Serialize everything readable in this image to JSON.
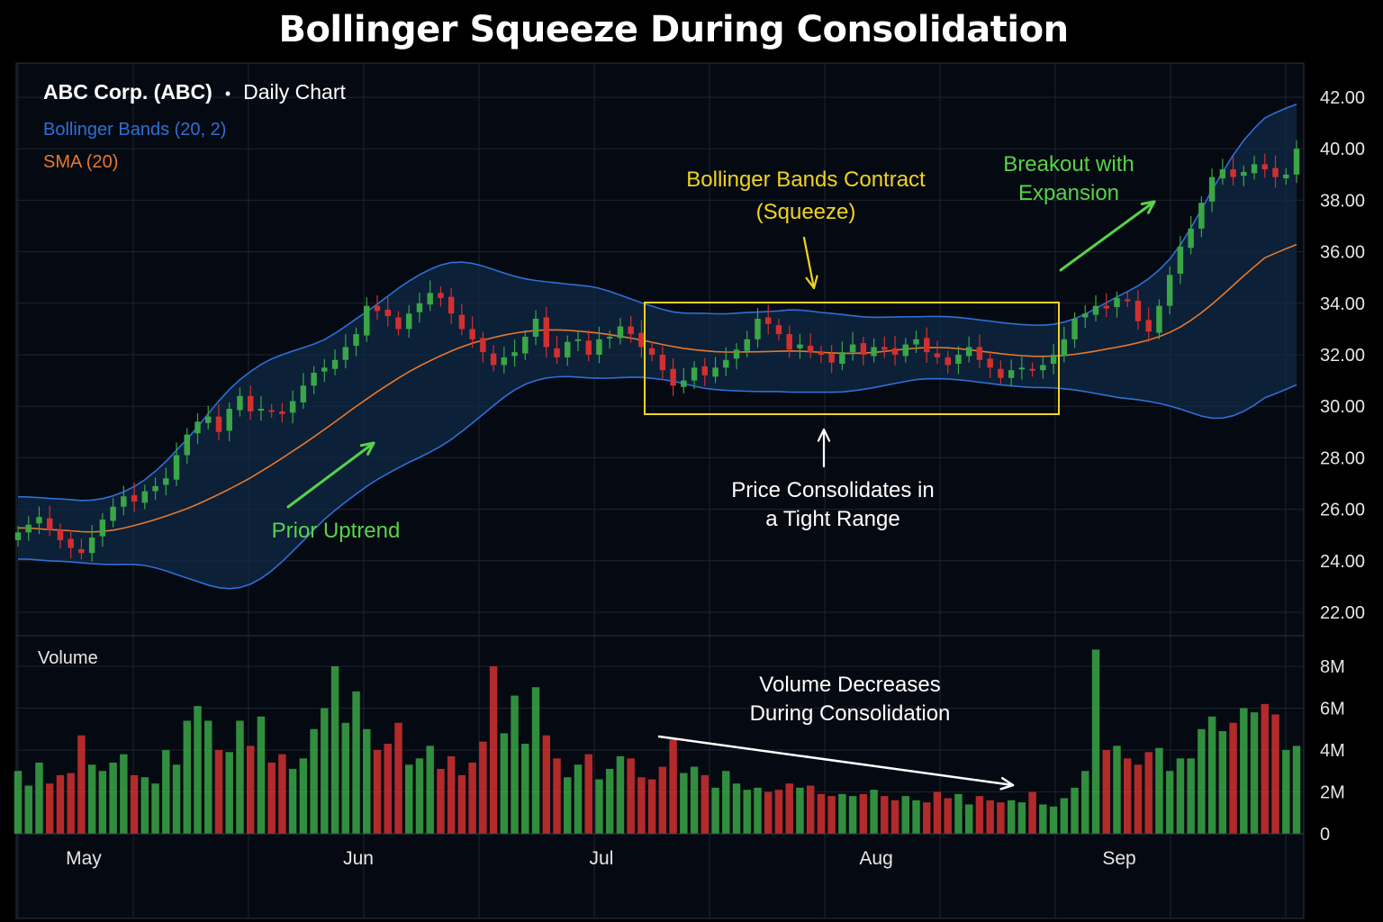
{
  "title": "Bollinger Squeeze During Consolidation",
  "colors": {
    "background": "#000000",
    "panel": "#050a12",
    "grid": "#1c2430",
    "band": "#2f6fd6",
    "band_fill": "#0f2a48",
    "sma": "#e8782a",
    "up": "#3aa647",
    "down": "#d23030",
    "highlight": "#f0d321",
    "green_annotation": "#58d248",
    "white_annotation": "#ffffff"
  },
  "chart_data": {
    "type": "candlestick",
    "header": {
      "symbol_text": "ABC Corp. (ABC)",
      "separator": "•",
      "interval_text": "Daily Chart"
    },
    "legend": [
      {
        "label": "Bollinger Bands (20, 2)",
        "color": "#2f6fd6"
      },
      {
        "label": "SMA (20)",
        "color": "#e8782a"
      }
    ],
    "y_axis": {
      "ticks": [
        "42.00",
        "40.00",
        "38.00",
        "36.00",
        "34.00",
        "32.00",
        "30.00",
        "28.00",
        "26.00",
        "24.00",
        "22.00"
      ],
      "range": [
        22,
        42
      ]
    },
    "volume_axis": {
      "label": "Volume",
      "ticks": [
        "8M",
        "6M",
        "4M",
        "2M",
        "0"
      ],
      "range": [
        0,
        8
      ]
    },
    "x_axis": {
      "months": [
        "May",
        "Jun",
        "Jul",
        "Aug",
        "Sep"
      ]
    },
    "annotations": {
      "squeeze": "Bollinger Bands Contract\n(Squeeze)",
      "consolidation": "Price Consolidates in\na Tight Range",
      "uptrend": "Prior Uptrend",
      "breakout": "Breakout with\nExpansion",
      "volume": "Volume Decreases\nDuring Consolidation"
    },
    "closes": [
      25.1,
      25.4,
      25.7,
      25.2,
      24.8,
      24.5,
      24.3,
      24.9,
      25.6,
      26.1,
      26.5,
      26.3,
      26.7,
      26.9,
      27.2,
      28.1,
      28.9,
      29.4,
      29.6,
      29.0,
      29.9,
      30.4,
      29.8,
      29.9,
      29.8,
      29.7,
      30.2,
      30.8,
      31.3,
      31.5,
      31.8,
      32.3,
      32.8,
      33.9,
      33.7,
      33.5,
      33.0,
      33.6,
      34.0,
      34.4,
      34.2,
      33.6,
      33.0,
      32.6,
      32.1,
      31.6,
      31.9,
      32.1,
      32.7,
      33.4,
      32.3,
      31.9,
      32.5,
      32.6,
      32.0,
      32.6,
      32.7,
      33.1,
      32.8,
      32.3,
      32.0,
      31.4,
      30.8,
      31.0,
      31.5,
      31.2,
      31.5,
      31.8,
      32.2,
      32.6,
      33.4,
      33.2,
      32.8,
      32.2,
      32.4,
      32.1,
      32.0,
      31.7,
      32.1,
      32.4,
      32.0,
      32.3,
      32.2,
      32.0,
      32.4,
      32.6,
      32.1,
      31.9,
      31.6,
      32.0,
      32.3,
      31.8,
      31.5,
      31.1,
      31.4,
      31.5,
      31.4,
      31.6,
      32.0,
      32.6,
      33.4,
      33.6,
      33.9,
      33.8,
      34.2,
      34.1,
      33.3,
      32.9,
      33.9,
      35.1,
      36.2,
      36.9,
      37.9,
      38.9,
      39.2,
      38.9,
      39.1,
      39.4,
      39.2,
      38.9,
      39.0,
      40.0
    ],
    "volumes": [
      3.0,
      2.3,
      3.4,
      2.4,
      2.8,
      2.9,
      4.7,
      3.3,
      3.0,
      3.4,
      3.8,
      2.8,
      2.7,
      2.4,
      4.0,
      3.3,
      5.4,
      6.1,
      5.4,
      4.0,
      3.9,
      5.4,
      4.2,
      5.6,
      3.4,
      3.8,
      3.1,
      3.6,
      5.0,
      6.0,
      8.0,
      5.3,
      6.8,
      5.0,
      4.0,
      4.3,
      5.3,
      3.3,
      3.6,
      4.2,
      3.1,
      3.7,
      2.8,
      3.4,
      4.4,
      8.0,
      4.8,
      6.6,
      4.3,
      7.0,
      4.7,
      3.6,
      2.7,
      3.3,
      3.8,
      2.6,
      3.1,
      3.7,
      3.6,
      2.7,
      2.6,
      3.2,
      4.5,
      2.9,
      3.2,
      2.8,
      2.2,
      3.0,
      2.4,
      2.1,
      2.2,
      2.0,
      2.1,
      2.4,
      2.2,
      2.3,
      1.9,
      1.8,
      1.9,
      1.8,
      1.9,
      2.1,
      1.8,
      1.6,
      1.8,
      1.6,
      1.5,
      2.0,
      1.7,
      1.9,
      1.4,
      1.8,
      1.6,
      1.5,
      1.6,
      1.5,
      2.0,
      1.4,
      1.3,
      1.7,
      2.2,
      3.0,
      8.8,
      4.0,
      4.2,
      3.6,
      3.3,
      3.9,
      4.1,
      3.0,
      3.6,
      3.6,
      5.0,
      5.6,
      4.9,
      5.3,
      6.0,
      5.8,
      6.2,
      5.7,
      4.0,
      4.2,
      4.6,
      5.9
    ]
  }
}
